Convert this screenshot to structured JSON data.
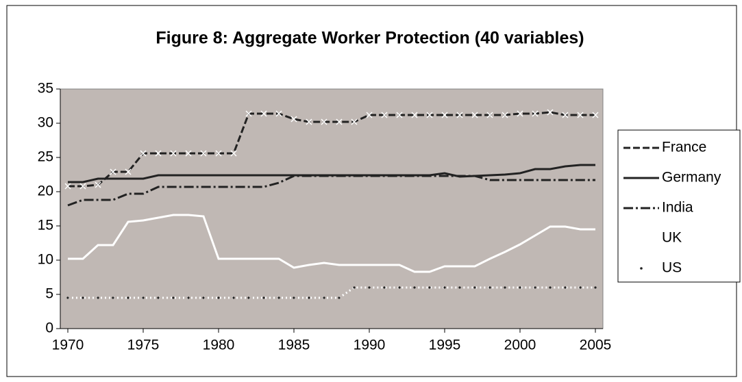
{
  "chart_data": {
    "type": "line",
    "title": "Figure 8: Aggregate Worker Protection (40 variables)",
    "x": [
      1970,
      1971,
      1972,
      1973,
      1974,
      1975,
      1976,
      1977,
      1978,
      1979,
      1980,
      1981,
      1982,
      1983,
      1984,
      1985,
      1986,
      1987,
      1988,
      1989,
      1990,
      1991,
      1992,
      1993,
      1994,
      1995,
      1996,
      1997,
      1998,
      1999,
      2000,
      2001,
      2002,
      2003,
      2004,
      2005
    ],
    "xlim": [
      1969.5,
      2005.5
    ],
    "xticks": [
      1970,
      1975,
      1980,
      1985,
      1990,
      1995,
      2000,
      2005
    ],
    "ylim": [
      0,
      35
    ],
    "yticks": [
      0,
      5,
      10,
      15,
      20,
      25,
      30,
      35
    ],
    "plot_background": "#c0b8b4",
    "legend": "right",
    "series": [
      {
        "name": "France",
        "color": "#222222",
        "dash": "10,4",
        "marker": "x",
        "values": [
          20.8,
          20.8,
          21,
          22.9,
          22.9,
          25.6,
          25.6,
          25.6,
          25.6,
          25.6,
          25.6,
          25.6,
          31.4,
          31.4,
          31.4,
          30.6,
          30.2,
          30.2,
          30.2,
          30.2,
          31.2,
          31.2,
          31.2,
          31.2,
          31.2,
          31.2,
          31.2,
          31.2,
          31.2,
          31.2,
          31.4,
          31.4,
          31.6,
          31.2,
          31.2,
          31.2
        ]
      },
      {
        "name": "Germany",
        "color": "#222222",
        "dash": "none",
        "marker": "none",
        "values": [
          21.4,
          21.4,
          21.9,
          21.9,
          21.9,
          21.9,
          22.4,
          22.4,
          22.4,
          22.4,
          22.4,
          22.4,
          22.4,
          22.4,
          22.4,
          22.4,
          22.4,
          22.4,
          22.4,
          22.4,
          22.4,
          22.4,
          22.4,
          22.4,
          22.4,
          22.7,
          22.2,
          22.3,
          22.4,
          22.5,
          22.7,
          23.3,
          23.3,
          23.7,
          23.9,
          23.9
        ]
      },
      {
        "name": "India",
        "color": "#222222",
        "dash": "14,4,3,4",
        "marker": "none",
        "values": [
          18,
          18.8,
          18.8,
          18.8,
          19.7,
          19.7,
          20.7,
          20.7,
          20.7,
          20.7,
          20.7,
          20.7,
          20.7,
          20.7,
          21.3,
          22.3,
          22.3,
          22.3,
          22.3,
          22.3,
          22.3,
          22.3,
          22.3,
          22.3,
          22.3,
          22.3,
          22.3,
          22.3,
          21.7,
          21.7,
          21.7,
          21.7,
          21.7,
          21.7,
          21.7,
          21.7
        ]
      },
      {
        "name": "UK",
        "color": "#ffffff",
        "dash": "none",
        "marker": "none",
        "values": [
          10.2,
          10.2,
          12.2,
          12.2,
          15.6,
          15.8,
          16.2,
          16.6,
          16.6,
          16.4,
          10.2,
          10.2,
          10.2,
          10.2,
          10.2,
          8.9,
          9.3,
          9.6,
          9.3,
          9.3,
          9.3,
          9.3,
          9.3,
          8.3,
          8.3,
          9.1,
          9.1,
          9.1,
          10.2,
          11.2,
          12.3,
          13.6,
          14.9,
          14.9,
          14.5,
          14.5
        ]
      },
      {
        "name": "US",
        "color": "#ffffff",
        "dash": "2,4",
        "marker": "dot",
        "values": [
          4.5,
          4.5,
          4.5,
          4.5,
          4.5,
          4.5,
          4.5,
          4.5,
          4.5,
          4.5,
          4.5,
          4.5,
          4.5,
          4.5,
          4.5,
          4.5,
          4.5,
          4.5,
          4.5,
          6,
          6,
          6,
          6,
          6,
          6,
          6,
          6,
          6,
          6,
          6,
          6,
          6,
          6,
          6,
          6,
          6
        ]
      }
    ]
  }
}
